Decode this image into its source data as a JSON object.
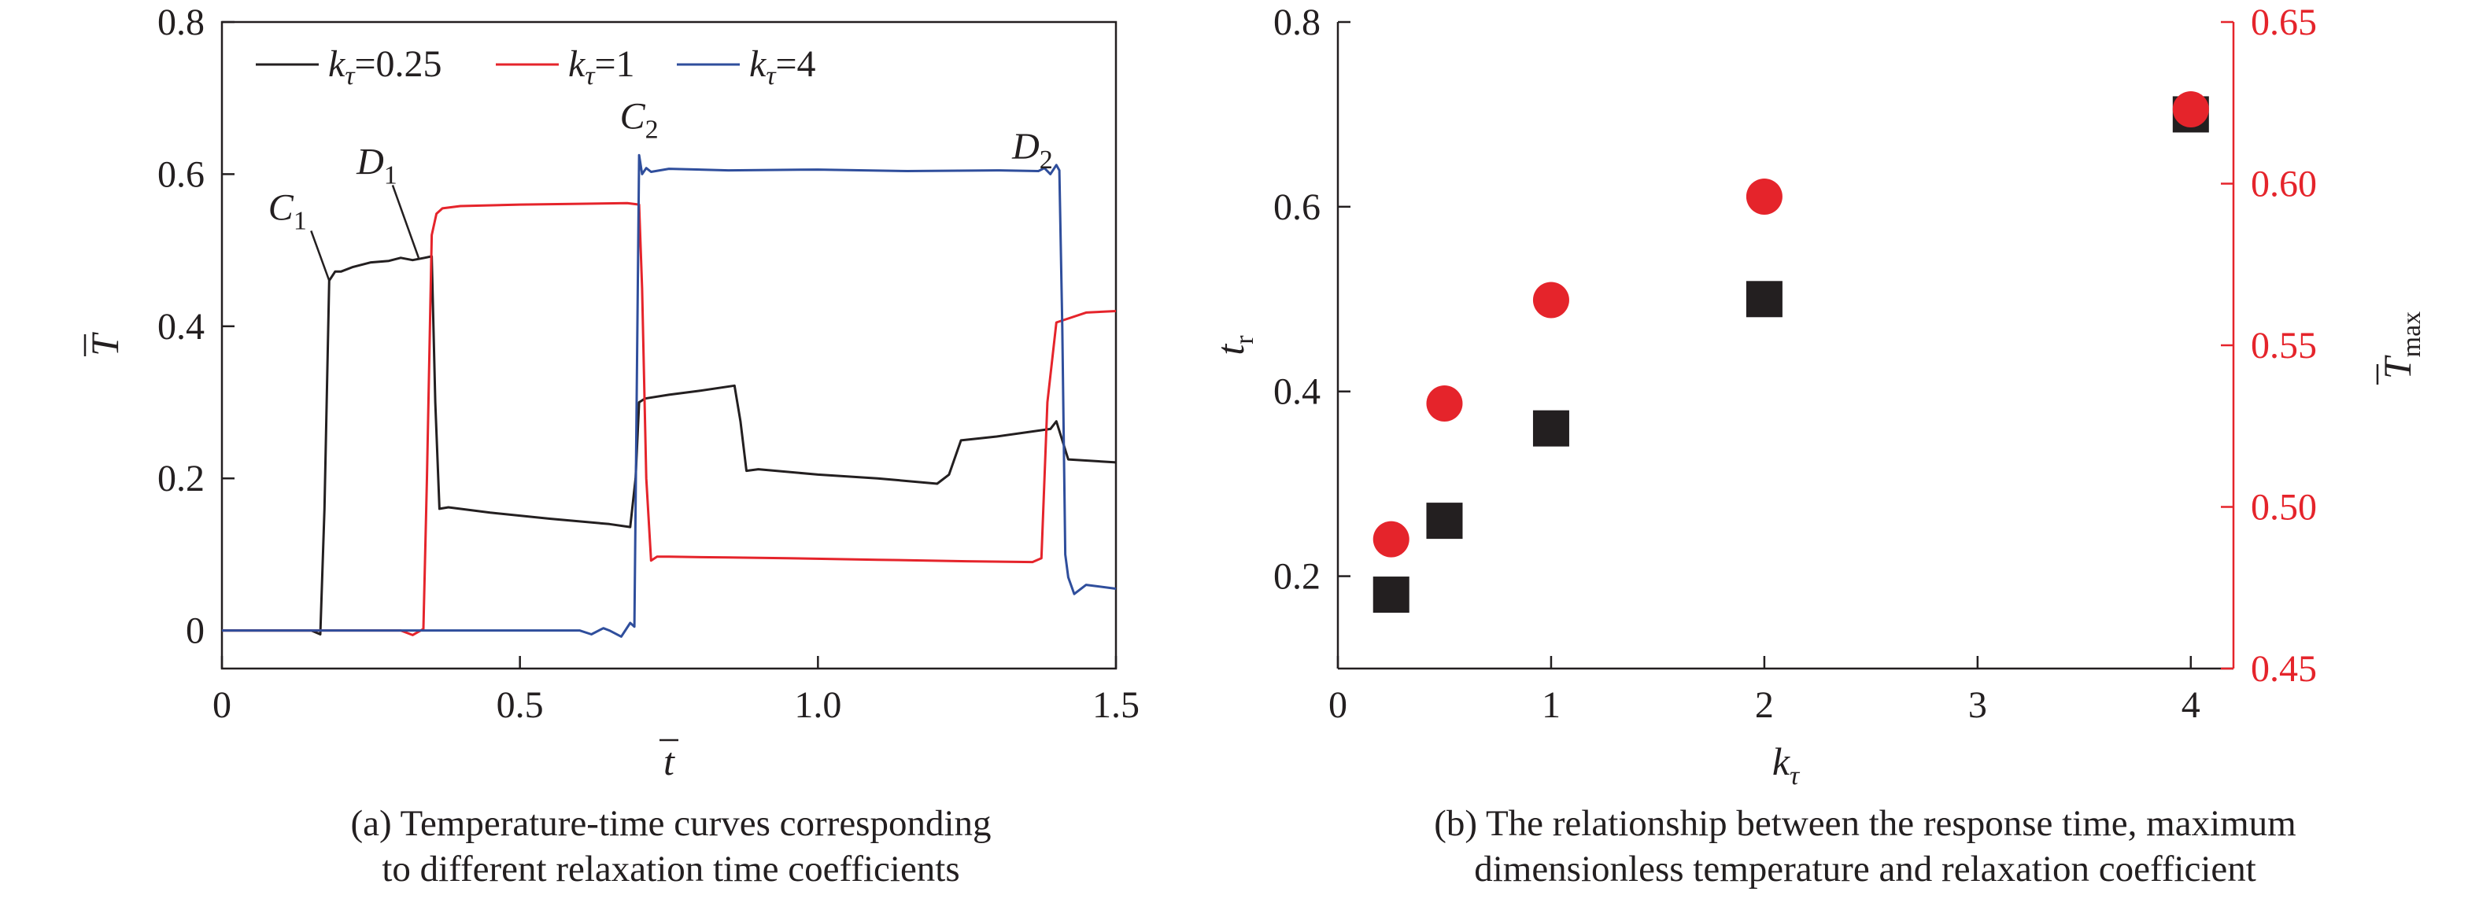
{
  "chart_data": [
    {
      "id": "a",
      "type": "line",
      "caption_line1": "(a) Temperature-time curves corresponding",
      "caption_line2": "to different relaxation time coefficients",
      "xlabel": "t",
      "ylabel": "T",
      "xlim": [
        0,
        1.5
      ],
      "ylim": [
        -0.05,
        0.8
      ],
      "xticks": [
        0,
        0.5,
        1.0,
        1.5
      ],
      "xtick_labels": [
        "0",
        "0.5",
        "1.0",
        "1.5"
      ],
      "yticks": [
        0,
        0.2,
        0.4,
        0.6,
        0.8
      ],
      "ytick_labels": [
        "0",
        "0.2",
        "0.4",
        "0.6",
        "0.8"
      ],
      "grid": false,
      "legend_position": "top",
      "series": [
        {
          "label_sym": "k",
          "label_sub": "τ",
          "label_val": "=0.25",
          "color": "#231f20",
          "x": [
            0,
            0.15,
            0.165,
            0.172,
            0.18,
            0.19,
            0.2,
            0.22,
            0.25,
            0.28,
            0.3,
            0.32,
            0.34,
            0.352,
            0.358,
            0.365,
            0.38,
            0.45,
            0.55,
            0.65,
            0.685,
            0.694,
            0.7,
            0.71,
            0.75,
            0.8,
            0.86,
            0.87,
            0.88,
            0.9,
            1.0,
            1.1,
            1.2,
            1.22,
            1.24,
            1.3,
            1.39,
            1.4,
            1.42,
            1.5
          ],
          "y": [
            0,
            0,
            -0.005,
            0.16,
            0.46,
            0.472,
            0.472,
            0.478,
            0.484,
            0.486,
            0.49,
            0.487,
            0.49,
            0.492,
            0.3,
            0.16,
            0.162,
            0.155,
            0.147,
            0.14,
            0.136,
            0.2,
            0.3,
            0.305,
            0.31,
            0.315,
            0.322,
            0.275,
            0.21,
            0.212,
            0.205,
            0.2,
            0.193,
            0.205,
            0.25,
            0.255,
            0.265,
            0.275,
            0.225,
            0.221
          ]
        },
        {
          "label_sym": "k",
          "label_sub": "τ",
          "label_val": "=1",
          "color": "#e5242b",
          "x": [
            0,
            0.3,
            0.32,
            0.338,
            0.344,
            0.352,
            0.36,
            0.37,
            0.4,
            0.5,
            0.6,
            0.68,
            0.7,
            0.705,
            0.712,
            0.72,
            0.73,
            0.75,
            0.85,
            0.95,
            1.1,
            1.25,
            1.36,
            1.375,
            1.385,
            1.4,
            1.45,
            1.5
          ],
          "y": [
            0,
            0,
            -0.006,
            0.002,
            0.2,
            0.52,
            0.548,
            0.555,
            0.558,
            0.56,
            0.561,
            0.562,
            0.56,
            0.45,
            0.2,
            0.092,
            0.097,
            0.097,
            0.096,
            0.095,
            0.093,
            0.091,
            0.09,
            0.095,
            0.3,
            0.405,
            0.418,
            0.42
          ]
        },
        {
          "label_sym": "k",
          "label_sub": "τ",
          "label_val": "=4",
          "color": "#2f4e9c",
          "x": [
            0,
            0.1,
            0.3,
            0.5,
            0.6,
            0.62,
            0.64,
            0.65,
            0.67,
            0.685,
            0.692,
            0.7,
            0.705,
            0.712,
            0.72,
            0.75,
            0.85,
            1.0,
            1.15,
            1.3,
            1.37,
            1.38,
            1.39,
            1.4,
            1.405,
            1.41,
            1.415,
            1.42,
            1.43,
            1.45,
            1.5
          ],
          "y": [
            0,
            0,
            0,
            0,
            0,
            -0.005,
            0.003,
            0,
            -0.008,
            0.01,
            0.005,
            0.625,
            0.6,
            0.608,
            0.603,
            0.607,
            0.605,
            0.606,
            0.604,
            0.605,
            0.604,
            0.608,
            0.6,
            0.612,
            0.605,
            0.4,
            0.1,
            0.07,
            0.048,
            0.06,
            0.055
          ]
        }
      ],
      "annotations": [
        {
          "letter": "C",
          "sub": "1",
          "color": "#231f20",
          "x": 0.11,
          "y": 0.54,
          "px": 0.18,
          "py": 0.46
        },
        {
          "letter": "D",
          "sub": "1",
          "color": "#231f20",
          "x": 0.26,
          "y": 0.6,
          "px": 0.33,
          "py": 0.49
        },
        {
          "letter": "C",
          "sub": "2",
          "color": "#2f4e9c",
          "x": 0.7,
          "y": 0.66
        },
        {
          "letter": "D",
          "sub": "2",
          "color": "#2f4e9c",
          "x": 1.36,
          "y": 0.62
        }
      ]
    },
    {
      "id": "b",
      "type": "scatter",
      "caption_line1": "(b) The relationship between the response time, maximum",
      "caption_line2": "dimensionless temperature and relaxation coefficient",
      "xlabel_sym": "k",
      "xlabel_sub": "τ",
      "ylabel_left_sym": "t",
      "ylabel_left_sub": "r",
      "ylabel_right_sym": "T",
      "ylabel_right_sub": "max",
      "xlim": [
        0,
        4.2
      ],
      "ylim_left": [
        0.1,
        0.8
      ],
      "ylim_right": [
        0.45,
        0.65
      ],
      "xticks": [
        0,
        1,
        2,
        3,
        4
      ],
      "xtick_labels": [
        "0",
        "1",
        "2",
        "3",
        "4"
      ],
      "yticks_left": [
        0.2,
        0.4,
        0.6,
        0.8
      ],
      "ytick_labels_left": [
        "0.2",
        "0.4",
        "0.6",
        "0.8"
      ],
      "yticks_right": [
        0.45,
        0.5,
        0.55,
        0.6,
        0.65
      ],
      "ytick_labels_right": [
        "0.45",
        "0.50",
        "0.55",
        "0.60",
        "0.65"
      ],
      "grid": false,
      "series": [
        {
          "axis": "left",
          "marker": "square",
          "color": "#231f20",
          "x": [
            0.25,
            0.5,
            1,
            2,
            4
          ],
          "values": [
            0.18,
            0.26,
            0.36,
            0.5,
            0.7
          ]
        },
        {
          "axis": "right",
          "marker": "circle",
          "color": "#e5242b",
          "x": [
            0.25,
            0.5,
            1,
            2,
            4
          ],
          "values": [
            0.49,
            0.532,
            0.564,
            0.596,
            0.623
          ]
        }
      ]
    }
  ]
}
